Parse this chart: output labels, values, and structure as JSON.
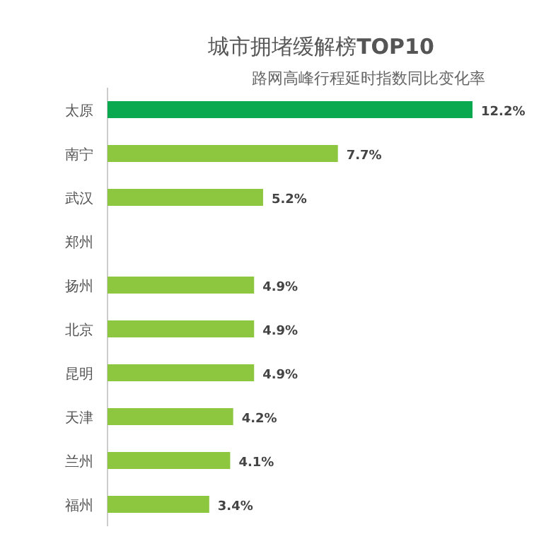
{
  "chart_data": {
    "type": "bar",
    "orientation": "horizontal",
    "title": "城市拥堵缓解榜**TOP10**",
    "subtitle": "路网高峰行程延时指数同比变化率",
    "categories": [
      "太原",
      "南宁",
      "武汉",
      "郑州",
      "扬州",
      "北京",
      "昆明",
      "天津",
      "兰州",
      "福州"
    ],
    "values": [
      12.2,
      7.7,
      5.2,
      null,
      4.9,
      4.9,
      4.9,
      4.2,
      4.1,
      3.4
    ],
    "value_labels": [
      "12.2%",
      "7.7%",
      "5.2%",
      null,
      "4.9%",
      "4.9%",
      "4.9%",
      "4.2%",
      "4.1%",
      "3.4%"
    ],
    "colors": [
      "#0aa84f",
      "#8dc63f",
      "#8dc63f",
      null,
      "#8dc63f",
      "#8dc63f",
      "#8dc63f",
      "#8dc63f",
      "#8dc63f",
      "#8dc63f"
    ]
  }
}
